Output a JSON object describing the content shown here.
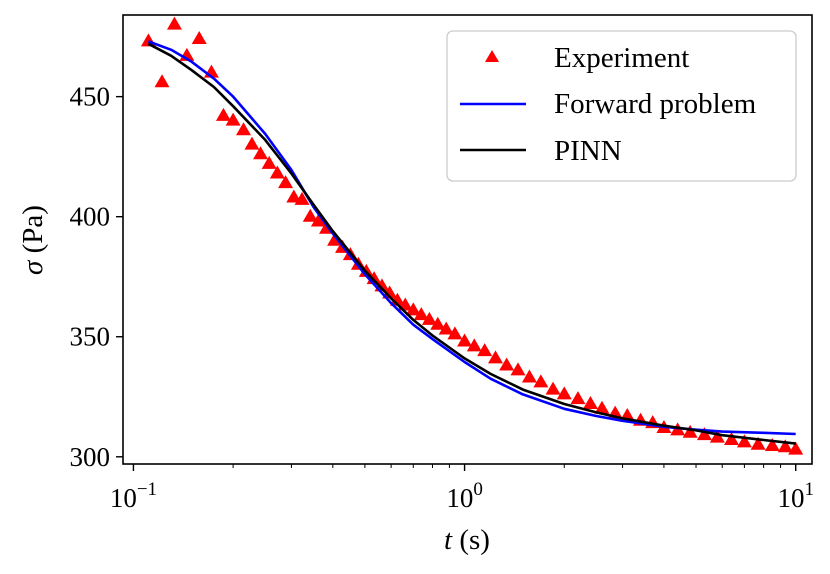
{
  "chart_data": {
    "type": "scatter",
    "title": "",
    "xlabel": {
      "var": "t",
      "unit": " (s)"
    },
    "ylabel": {
      "var": "σ",
      "unit": " (Pa)"
    },
    "xscale": "log",
    "xlim": [
      0.093,
      11.2
    ],
    "ylim": [
      297,
      484
    ],
    "x_ticks": [
      {
        "value": 0.1,
        "base": "10",
        "exp": "−1"
      },
      {
        "value": 1,
        "base": "10",
        "exp": "0"
      },
      {
        "value": 10,
        "base": "10",
        "exp": "1"
      }
    ],
    "y_ticks": [
      {
        "value": 300,
        "label": "300"
      },
      {
        "value": 350,
        "label": "350"
      },
      {
        "value": 400,
        "label": "400"
      },
      {
        "value": 450,
        "label": "450"
      }
    ],
    "legend": {
      "placement": "top-right",
      "entries": [
        {
          "label": "Experiment",
          "series": "experiment"
        },
        {
          "label": "Forward problem",
          "series": "forward"
        },
        {
          "label": "PINN",
          "series": "pinn"
        }
      ]
    },
    "colors": {
      "experiment": "#ff0000",
      "forward": "#0000ff",
      "pinn": "#000000"
    },
    "series": [
      {
        "name": "Experiment",
        "key": "experiment",
        "kind": "scatter",
        "marker": "triangle-up",
        "points": [
          [
            0.111,
            473
          ],
          [
            0.122,
            456
          ],
          [
            0.133,
            480
          ],
          [
            0.145,
            467
          ],
          [
            0.158,
            474
          ],
          [
            0.172,
            460
          ],
          [
            0.187,
            442
          ],
          [
            0.2,
            440
          ],
          [
            0.215,
            436
          ],
          [
            0.228,
            430
          ],
          [
            0.242,
            426
          ],
          [
            0.257,
            422
          ],
          [
            0.272,
            418
          ],
          [
            0.288,
            414
          ],
          [
            0.305,
            408
          ],
          [
            0.323,
            407
          ],
          [
            0.342,
            400
          ],
          [
            0.362,
            398
          ],
          [
            0.383,
            395
          ],
          [
            0.405,
            390
          ],
          [
            0.428,
            387
          ],
          [
            0.452,
            384
          ],
          [
            0.478,
            380
          ],
          [
            0.505,
            377
          ],
          [
            0.533,
            374
          ],
          [
            0.563,
            371
          ],
          [
            0.594,
            368
          ],
          [
            0.627,
            365
          ],
          [
            0.662,
            363
          ],
          [
            0.7,
            361
          ],
          [
            0.74,
            359
          ],
          [
            0.783,
            357
          ],
          [
            0.83,
            355
          ],
          [
            0.88,
            353
          ],
          [
            0.935,
            351
          ],
          [
            1.0,
            348
          ],
          [
            1.07,
            346
          ],
          [
            1.15,
            344
          ],
          [
            1.24,
            341
          ],
          [
            1.34,
            338
          ],
          [
            1.45,
            336
          ],
          [
            1.57,
            333
          ],
          [
            1.7,
            331
          ],
          [
            1.85,
            328
          ],
          [
            2.0,
            326
          ],
          [
            2.2,
            324
          ],
          [
            2.4,
            322
          ],
          [
            2.6,
            320
          ],
          [
            2.85,
            318
          ],
          [
            3.1,
            317
          ],
          [
            3.4,
            315
          ],
          [
            3.7,
            314
          ],
          [
            4.0,
            312
          ],
          [
            4.4,
            311
          ],
          [
            4.8,
            310
          ],
          [
            5.3,
            309
          ],
          [
            5.8,
            308
          ],
          [
            6.4,
            307
          ],
          [
            7.0,
            306
          ],
          [
            7.7,
            305
          ],
          [
            8.5,
            304.5
          ],
          [
            9.3,
            304
          ],
          [
            10.0,
            303
          ]
        ]
      },
      {
        "name": "Forward problem",
        "key": "forward",
        "kind": "line",
        "points": [
          [
            0.111,
            473
          ],
          [
            0.13,
            469.5
          ],
          [
            0.15,
            464.5
          ],
          [
            0.175,
            457.5
          ],
          [
            0.2,
            450
          ],
          [
            0.25,
            434.5
          ],
          [
            0.3,
            419.5
          ],
          [
            0.35,
            404
          ],
          [
            0.4,
            393
          ],
          [
            0.5,
            376
          ],
          [
            0.6,
            364
          ],
          [
            0.7,
            355
          ],
          [
            0.8,
            349
          ],
          [
            1.0,
            339.5
          ],
          [
            1.2,
            332.5
          ],
          [
            1.5,
            326
          ],
          [
            2.0,
            320
          ],
          [
            2.5,
            317
          ],
          [
            3.0,
            315
          ],
          [
            4.0,
            312.5
          ],
          [
            5.0,
            311.3
          ],
          [
            6.0,
            310.5
          ],
          [
            8.0,
            310
          ],
          [
            10.0,
            309.5
          ]
        ]
      },
      {
        "name": "PINN",
        "key": "pinn",
        "kind": "line",
        "points": [
          [
            0.111,
            472
          ],
          [
            0.13,
            467
          ],
          [
            0.15,
            461
          ],
          [
            0.175,
            454
          ],
          [
            0.2,
            446
          ],
          [
            0.25,
            432
          ],
          [
            0.3,
            418
          ],
          [
            0.35,
            405
          ],
          [
            0.4,
            394
          ],
          [
            0.5,
            377.5
          ],
          [
            0.6,
            366
          ],
          [
            0.7,
            357
          ],
          [
            0.8,
            350.5
          ],
          [
            1.0,
            341
          ],
          [
            1.2,
            334.5
          ],
          [
            1.5,
            328
          ],
          [
            2.0,
            322
          ],
          [
            2.5,
            318.5
          ],
          [
            3.0,
            316
          ],
          [
            4.0,
            313
          ],
          [
            5.0,
            311
          ],
          [
            6.0,
            309
          ],
          [
            8.0,
            307
          ],
          [
            10.0,
            305.5
          ]
        ]
      }
    ]
  }
}
